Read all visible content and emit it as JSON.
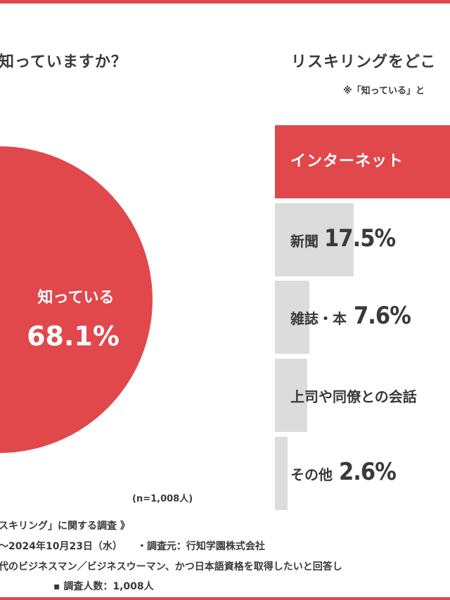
{
  "left_title": "知っていますか？",
  "right_title": "リスキリングをどこ",
  "right_note": "※「知っている」と",
  "sample_size": "(n=1,008人)",
  "colors": {
    "accent": "#e0484c",
    "bar_gray": "#dcdcdc",
    "text": "#3a3a3a"
  },
  "chart_data": [
    {
      "type": "pie",
      "slices": [
        {
          "label": "知っている",
          "value": 68.1,
          "value_label": "68.1%",
          "color": "#e0484c"
        }
      ],
      "note": "(n=1,008人)"
    },
    {
      "type": "bar",
      "orientation": "horizontal",
      "categories": [
        "インターネット",
        "新聞",
        "雑誌・本",
        "上司や同僚との会話",
        "その他"
      ],
      "values": [
        null,
        17.5,
        7.6,
        null,
        2.6
      ],
      "value_labels": [
        "",
        "17.5%",
        "7.6%",
        "",
        "2.6%"
      ],
      "highlight": "インターネット"
    }
  ],
  "footer": {
    "line1": "スキリング」に関する調査 》",
    "line2": "〜2024年10月23日（水）　　・調査元：行知学園株式会社",
    "line3": "代のビジネスマン／ビジネスウーマン、かつ日本語資格を取得したいと回答し",
    "line4": "▪ 調査人数：1,008人"
  }
}
